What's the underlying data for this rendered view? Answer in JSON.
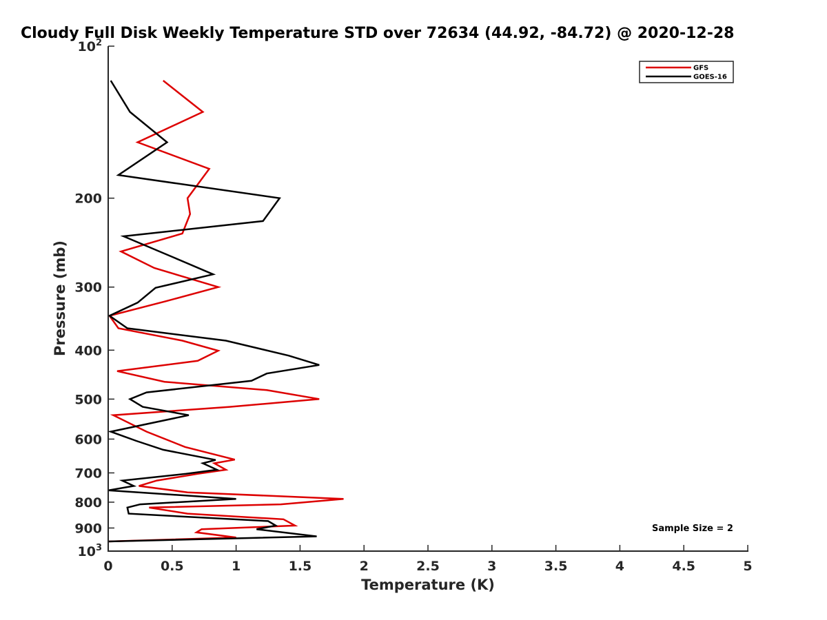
{
  "chart_data": {
    "type": "line",
    "title": "Cloudy Full Disk Weekly Temperature STD over 72634 (44.92, -84.72) @ 2020-12-28",
    "xlabel": "Temperature (K)",
    "ylabel": "Pressure (mb)",
    "xlim": [
      0,
      5
    ],
    "ylim": [
      100,
      1000
    ],
    "y_scale": "log",
    "y_reversed": true,
    "grid": false,
    "legend_position": "top-right",
    "x_ticks": [
      "0",
      "0.5",
      "1",
      "1.5",
      "2",
      "2.5",
      "3",
      "3.5",
      "4",
      "4.5",
      "5"
    ],
    "y_ticks": [
      {
        "value": 100,
        "base": "10",
        "exp": "2"
      },
      {
        "value": 200,
        "label": "200"
      },
      {
        "value": 300,
        "label": "300"
      },
      {
        "value": 400,
        "label": "400"
      },
      {
        "value": 500,
        "label": "500"
      },
      {
        "value": 600,
        "label": "600"
      },
      {
        "value": 700,
        "label": "700"
      },
      {
        "value": 800,
        "label": "800"
      },
      {
        "value": 900,
        "label": "900"
      },
      {
        "value": 1000,
        "base": "10",
        "exp": "3"
      }
    ],
    "annotation": "Sample Size = 2",
    "series": [
      {
        "name": "GFS",
        "color": "#dd0000",
        "points": [
          [
            0.43,
            117
          ],
          [
            0.74,
            135
          ],
          [
            0.23,
            155
          ],
          [
            0.79,
            175
          ],
          [
            0.62,
            200
          ],
          [
            0.64,
            215
          ],
          [
            0.58,
            235
          ],
          [
            0.1,
            255
          ],
          [
            0.36,
            275
          ],
          [
            0.86,
            300
          ],
          [
            0.45,
            320
          ],
          [
            0.01,
            342
          ],
          [
            0.08,
            362
          ],
          [
            0.58,
            383
          ],
          [
            0.86,
            401
          ],
          [
            0.7,
            420
          ],
          [
            0.07,
            440
          ],
          [
            0.44,
            462
          ],
          [
            1.24,
            480
          ],
          [
            1.65,
            500
          ],
          [
            0.95,
            518
          ],
          [
            0.04,
            538
          ],
          [
            0.3,
            580
          ],
          [
            0.6,
            622
          ],
          [
            0.99,
            659
          ],
          [
            0.83,
            670
          ],
          [
            0.92,
            690
          ],
          [
            0.7,
            703
          ],
          [
            0.38,
            725
          ],
          [
            0.24,
            743
          ],
          [
            0.62,
            765
          ],
          [
            1.84,
            788
          ],
          [
            1.35,
            808
          ],
          [
            0.32,
            820
          ],
          [
            0.62,
            843
          ],
          [
            1.37,
            865
          ],
          [
            1.46,
            890
          ],
          [
            0.73,
            905
          ],
          [
            0.69,
            918
          ],
          [
            1.0,
            940
          ],
          [
            0.0,
            957
          ]
        ]
      },
      {
        "name": "GOES-16",
        "color": "#000000",
        "points": [
          [
            0.02,
            117
          ],
          [
            0.17,
            135
          ],
          [
            0.46,
            155
          ],
          [
            0.08,
            180
          ],
          [
            1.34,
            200
          ],
          [
            1.21,
            222
          ],
          [
            0.12,
            238
          ],
          [
            0.51,
            262
          ],
          [
            0.82,
            283
          ],
          [
            0.37,
            301
          ],
          [
            0.23,
            322
          ],
          [
            0.01,
            342
          ],
          [
            0.15,
            362
          ],
          [
            0.92,
            383
          ],
          [
            1.41,
            410
          ],
          [
            1.65,
            428
          ],
          [
            1.24,
            445
          ],
          [
            1.12,
            460
          ],
          [
            0.3,
            485
          ],
          [
            0.17,
            500
          ],
          [
            0.27,
            518
          ],
          [
            0.63,
            538
          ],
          [
            0.02,
            580
          ],
          [
            0.22,
            605
          ],
          [
            0.43,
            630
          ],
          [
            0.84,
            660
          ],
          [
            0.74,
            670
          ],
          [
            0.85,
            690
          ],
          [
            0.61,
            703
          ],
          [
            0.11,
            725
          ],
          [
            0.2,
            743
          ],
          [
            0.0,
            758
          ],
          [
            1.0,
            788
          ],
          [
            0.25,
            808
          ],
          [
            0.15,
            820
          ],
          [
            0.16,
            843
          ],
          [
            1.25,
            872
          ],
          [
            1.31,
            890
          ],
          [
            1.16,
            905
          ],
          [
            1.63,
            935
          ],
          [
            0.0,
            957
          ]
        ]
      }
    ]
  }
}
